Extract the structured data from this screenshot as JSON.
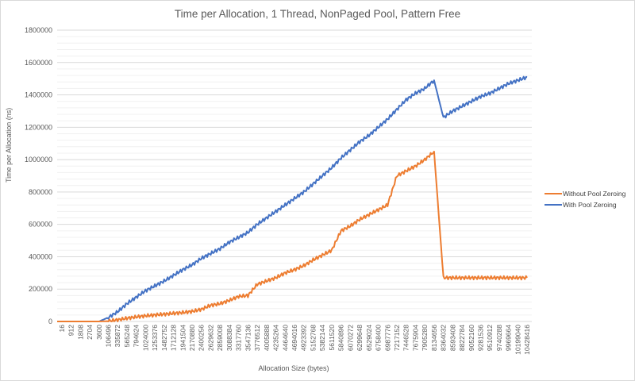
{
  "chart_data": {
    "type": "line",
    "title": "Time per Allocation, 1 Thread, NonPaged Pool, Pattern Free",
    "xlabel": "Allocation Size (bytes)",
    "ylabel": "Time per Allocation (ns)",
    "ylim": [
      0,
      1800000
    ],
    "yticks": [
      0,
      200000,
      400000,
      600000,
      800000,
      1000000,
      1200000,
      1400000,
      1600000,
      1800000
    ],
    "ytick_labels": [
      "0",
      "200000",
      "400000",
      "600000",
      "800000",
      "1000000",
      "1200000",
      "1400000",
      "1600000",
      "1800000"
    ],
    "grid": true,
    "legend_position": "right",
    "categories": [
      "16",
      "912",
      "1808",
      "2704",
      "3600",
      "106496",
      "335872",
      "565248",
      "794624",
      "1024000",
      "1253376",
      "1482752",
      "1712128",
      "1941504",
      "2170880",
      "2400256",
      "2629632",
      "2859008",
      "3088384",
      "3317760",
      "3547136",
      "3776512",
      "4005888",
      "4235264",
      "4464640",
      "4694016",
      "4923392",
      "5152768",
      "5382144",
      "5611520",
      "5840896",
      "6070272",
      "6299648",
      "6529024",
      "6758400",
      "6987776",
      "7217152",
      "7446528",
      "7675904",
      "7905280",
      "8134656",
      "8364032",
      "8593408",
      "8822784",
      "9052160",
      "9281536",
      "9510912",
      "9740288",
      "9969664",
      "10199040",
      "10428416"
    ],
    "series": [
      {
        "name": "Without Pool Zeroing",
        "color": "#ED7D31",
        "values": [
          0,
          0,
          0,
          0,
          0,
          2000,
          10000,
          20000,
          28000,
          35000,
          40000,
          45000,
          50000,
          55000,
          62000,
          75000,
          100000,
          110000,
          130000,
          155000,
          160000,
          230000,
          250000,
          270000,
          300000,
          320000,
          345000,
          380000,
          410000,
          440000,
          560000,
          590000,
          630000,
          660000,
          690000,
          720000,
          900000,
          930000,
          960000,
          1000000,
          1050000,
          270000,
          270000,
          270000,
          270000,
          270000,
          270000,
          270000,
          270000,
          270000,
          270000
        ]
      },
      {
        "name": "With Pool Zeroing",
        "color": "#4472C4",
        "values": [
          0,
          0,
          0,
          0,
          0,
          25000,
          60000,
          110000,
          150000,
          190000,
          220000,
          250000,
          285000,
          320000,
          350000,
          390000,
          420000,
          450000,
          490000,
          520000,
          550000,
          600000,
          640000,
          680000,
          720000,
          760000,
          800000,
          850000,
          900000,
          950000,
          1010000,
          1060000,
          1110000,
          1150000,
          1200000,
          1250000,
          1310000,
          1370000,
          1410000,
          1440000,
          1490000,
          1260000,
          1300000,
          1330000,
          1360000,
          1390000,
          1410000,
          1440000,
          1470000,
          1490000,
          1510000
        ]
      }
    ]
  },
  "legend": {
    "items": [
      {
        "label": "Without Pool Zeroing",
        "color": "#ED7D31"
      },
      {
        "label": "With Pool Zeroing",
        "color": "#4472C4"
      }
    ]
  }
}
